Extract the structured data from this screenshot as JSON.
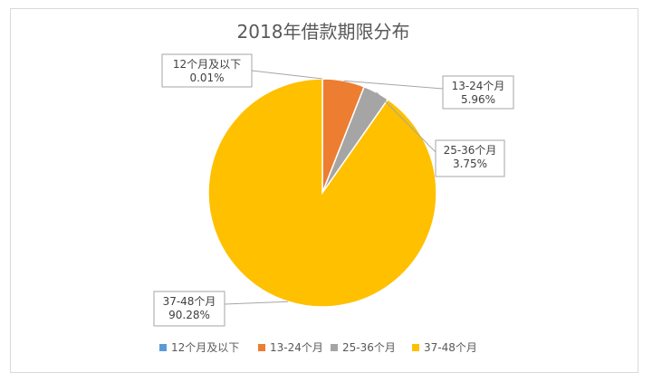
{
  "chart_data": {
    "type": "pie",
    "title": "2018年借款期限分布",
    "categories": [
      "12个月及以下",
      "13-24个月",
      "25-36个月",
      "37-48个月"
    ],
    "values": [
      0.01,
      5.96,
      3.75,
      90.28
    ],
    "percent_labels": [
      "0.01%",
      "5.96%",
      "3.75%",
      "90.28%"
    ],
    "colors": [
      "#5b9bd5",
      "#ed7d31",
      "#a5a5a5",
      "#ffc000"
    ],
    "legend_position": "bottom"
  }
}
